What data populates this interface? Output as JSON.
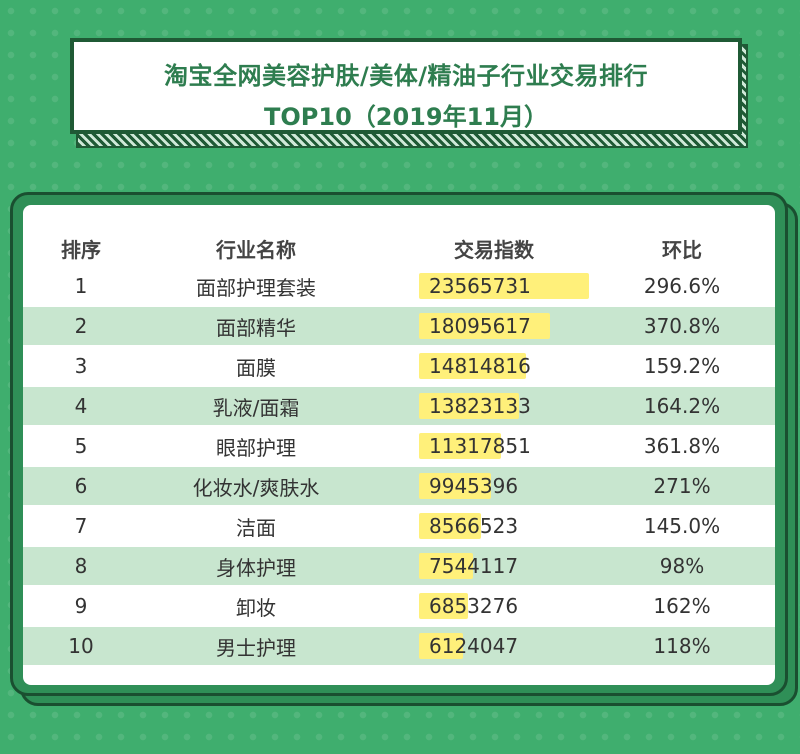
{
  "header": {
    "title_line1": "淘宝全网美容护肤/美体/精油子行业交易排行",
    "title_line2": "TOP10（2019年11月）"
  },
  "table": {
    "columns": [
      "排序",
      "行业名称",
      "交易指数",
      "环比"
    ],
    "rows": [
      {
        "rank": "1",
        "name": "面部护理套装",
        "index": "23565731",
        "mom": "296.6%"
      },
      {
        "rank": "2",
        "name": "面部精华",
        "index": "18095617",
        "mom": "370.8%"
      },
      {
        "rank": "3",
        "name": "面膜",
        "index": "14814816",
        "mom": "159.2%"
      },
      {
        "rank": "4",
        "name": "乳液/面霜",
        "index": "13823133",
        "mom": "164.2%"
      },
      {
        "rank": "5",
        "name": "眼部护理",
        "index": "11317851",
        "mom": "361.8%"
      },
      {
        "rank": "6",
        "name": "化妆水/爽肤水",
        "index": "9945396",
        "mom": "271%"
      },
      {
        "rank": "7",
        "name": "洁面",
        "index": "8566523",
        "mom": "145.0%"
      },
      {
        "rank": "8",
        "name": "身体护理",
        "index": "7544117",
        "mom": "98%"
      },
      {
        "rank": "9",
        "name": "卸妆",
        "index": "6853276",
        "mom": "162%"
      },
      {
        "rank": "10",
        "name": "男士护理",
        "index": "6124047",
        "mom": "118%"
      }
    ]
  },
  "colors": {
    "background": "#3fae6e",
    "accent_dark": "#1f5a35",
    "row_alt": "#c8e6cf",
    "bar": "#fff07a",
    "title_text": "#2e7d4f"
  }
}
